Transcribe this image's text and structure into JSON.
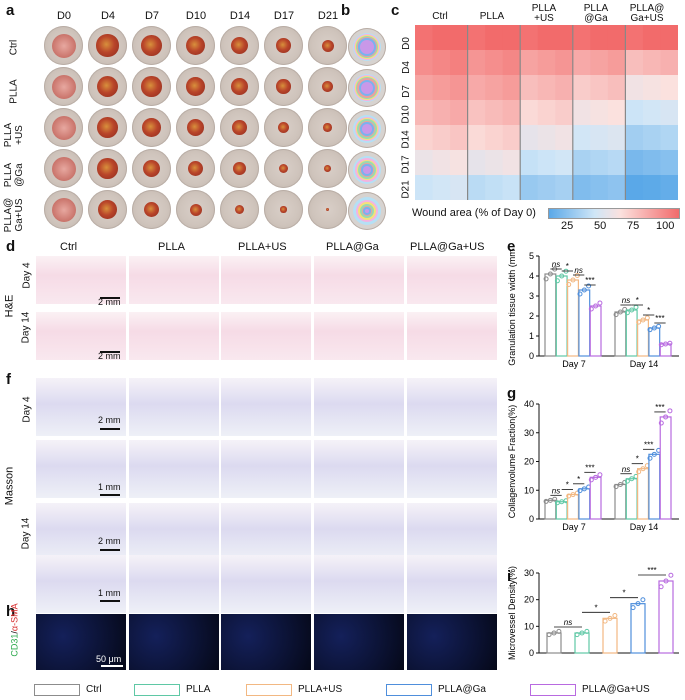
{
  "panel_labels": {
    "a": "a",
    "b": "b",
    "c": "c",
    "d": "d",
    "e": "e",
    "f": "f",
    "g": "g",
    "h": "h",
    "i": "i"
  },
  "photo_days": [
    "D0",
    "D4",
    "D7",
    "D10",
    "D14",
    "D17",
    "D21"
  ],
  "photo_rows": [
    "Ctrl",
    "PLLA",
    "PLLA +US",
    "PLLA @Ga",
    "PLLA@ Ga+US"
  ],
  "groups": [
    "Ctrl",
    "PLLA",
    "PLLA+US",
    "PLLA@Ga",
    "PLLA@Ga+US"
  ],
  "heatmap": {
    "columns": [
      "Ctrl",
      "PLLA",
      "PLLA +US",
      "PLLA @Ga",
      "PLLA@ Ga+US"
    ],
    "rows": [
      "D0",
      "D4",
      "D7",
      "D10",
      "D14",
      "D17",
      "D21"
    ],
    "colorbar_title": "Wound area (% of Day 0)",
    "colorbar_ticks": [
      "25",
      "50",
      "75",
      "100"
    ]
  },
  "histology": {
    "he_label": "H&E",
    "masson_label": "Masson",
    "day4": "Day 4",
    "day14": "Day 14",
    "scale_2mm": "2 mm",
    "scale_1mm": "1 mm",
    "scale_50um": "50 μm",
    "if_label_green": "CD31",
    "if_label_sep": "/",
    "if_label_red": "α-SMA"
  },
  "colors": {
    "Ctrl": "#8c8c8c",
    "PLLA": "#5fc8a5",
    "PLLA+US": "#f2b882",
    "PLLA@Ga": "#4f8fdc",
    "PLLA@Ga+US": "#b86ae0"
  },
  "chart_data": [
    {
      "id": "e",
      "type": "bar",
      "ylabel": "Granulation tissue width (mm)",
      "categories": [
        "Day 7",
        "Day 14"
      ],
      "ylim": [
        0,
        5
      ],
      "yticks": [
        0,
        1,
        2,
        3,
        4,
        5
      ],
      "series": [
        {
          "name": "Ctrl",
          "values": [
            4.1,
            2.2
          ]
        },
        {
          "name": "PLLA",
          "values": [
            4.0,
            2.3
          ]
        },
        {
          "name": "PLLA+US",
          "values": [
            3.8,
            1.8
          ]
        },
        {
          "name": "PLLA@Ga",
          "values": [
            3.3,
            1.4
          ]
        },
        {
          "name": "PLLA@Ga+US",
          "values": [
            2.5,
            0.6
          ]
        }
      ],
      "annotations": [
        [
          "ns",
          "*",
          "ns",
          "***"
        ],
        [
          "ns",
          "*",
          "*",
          "***"
        ]
      ]
    },
    {
      "id": "g",
      "type": "bar",
      "ylabel": "Collagenvolume Fraction(%)",
      "categories": [
        "Day 7",
        "Day 14"
      ],
      "ylim": [
        0,
        40
      ],
      "yticks": [
        0,
        10,
        20,
        30,
        40
      ],
      "series": [
        {
          "name": "Ctrl",
          "values": [
            6.5,
            12.0
          ]
        },
        {
          "name": "PLLA",
          "values": [
            6.0,
            14.0
          ]
        },
        {
          "name": "PLLA+US",
          "values": [
            8.5,
            17.5
          ]
        },
        {
          "name": "PLLA@Ga",
          "values": [
            10.5,
            22.5
          ]
        },
        {
          "name": "PLLA@Ga+US",
          "values": [
            14.5,
            35.5
          ]
        }
      ],
      "annotations": [
        [
          "ns",
          "*",
          "*",
          "***"
        ],
        [
          "ns",
          "*",
          "***",
          "***"
        ]
      ]
    },
    {
      "id": "i",
      "type": "bar",
      "ylabel": "Microvessel Density(%)",
      "categories": [
        "Ctrl",
        "PLLA",
        "PLLA+US",
        "PLLA@Ga",
        "PLLA@Ga+US"
      ],
      "ylim": [
        0,
        30
      ],
      "yticks": [
        0,
        10,
        20,
        30
      ],
      "values": [
        7.5,
        7.5,
        13.0,
        18.5,
        27.0
      ],
      "annotations": [
        "ns",
        "*",
        "*",
        "***"
      ]
    }
  ],
  "legend": [
    "Ctrl",
    "PLLA",
    "PLLA+US",
    "PLLA@Ga",
    "PLLA@Ga+US"
  ]
}
